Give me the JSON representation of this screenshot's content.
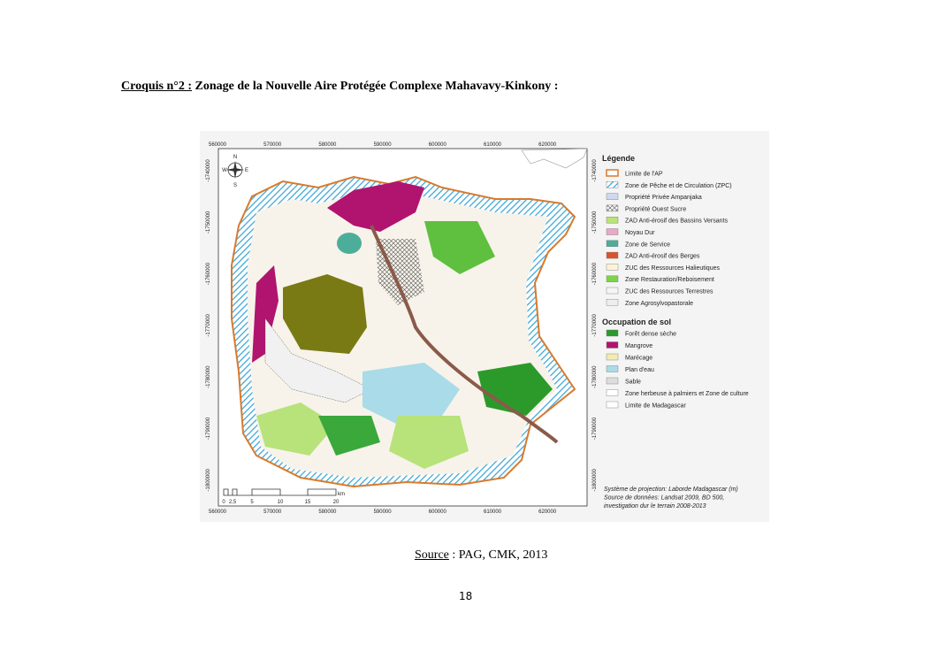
{
  "heading": {
    "label": "Croquis n°2 :",
    "text": "Zonage de la Nouvelle Aire Protégée Complexe Mahavavy-Kinkony :"
  },
  "map": {
    "x_labels": [
      "560000",
      "570000",
      "580000",
      "590000",
      "600000",
      "610000",
      "620000"
    ],
    "y_labels": [
      "-1740000",
      "-1750000",
      "-1760000",
      "-1770000",
      "-1780000",
      "-1790000",
      "-1800000"
    ],
    "compass": [
      "N",
      "W",
      "E",
      "S"
    ],
    "scale": {
      "ticks": [
        "0",
        "2,5",
        "5",
        "10",
        "15",
        "20"
      ],
      "unit": "km"
    },
    "legend": {
      "title": "Légende",
      "items": [
        "Limite de l'AP",
        "Zone de Pêche et de Circulation (ZPC)",
        "Propriété Privée Ampanjaka",
        "Propriété Ouest Sucre",
        "ZAD Anti-érosif des Bassins Versants",
        "Noyau Dur",
        "Zone de Service",
        "ZAD Anti-érosif des Berges",
        "ZUC des Ressources Halieutiques",
        "Zone Restauration/Reboisement",
        "ZUC des Ressources Terrestres",
        "Zone Agrosylvopastorale"
      ],
      "occupation_title": "Occupation de sol",
      "occupation_items": [
        "Forêt dense sèche",
        "Mangrove",
        "Marécage",
        "Plan d'eau",
        "Sable",
        "Zone herbeuse à palmiers et Zone de  culture",
        "Limite de Madagascar"
      ]
    },
    "notes": [
      "Système de projection: Laborde Madagascar (m)",
      "Source de données: Landsat 2009, BD 500,",
      " investigation dur le terrain 2008-2013"
    ]
  },
  "source": {
    "label": "Source",
    "text": " : PAG, CMK, 2013"
  },
  "page_number": "18"
}
